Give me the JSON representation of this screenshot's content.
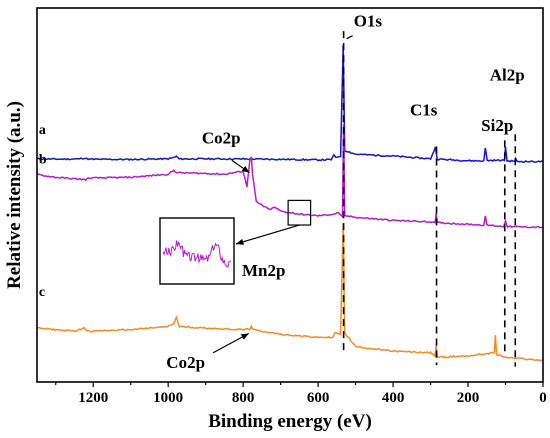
{
  "chart_data": {
    "type": "line",
    "xlabel": "Binding energy (eV)",
    "ylabel": "Relative intensity (a.u.)",
    "xlim": [
      1350,
      0
    ],
    "x_reversed": true,
    "x_ticks": [
      1200,
      1000,
      800,
      600,
      400,
      200,
      0
    ],
    "y_ticks_shown": false,
    "series": [
      {
        "name": "a",
        "color": "#1414c8",
        "baseline": 1.0,
        "points": [
          [
            1350,
            1.0
          ],
          [
            1300,
            0.98
          ],
          [
            1240,
            0.99
          ],
          [
            1225,
            1.05
          ],
          [
            1210,
            0.97
          ],
          [
            1100,
            0.96
          ],
          [
            1000,
            1.0
          ],
          [
            985,
            1.08
          ],
          [
            978,
            1.16
          ],
          [
            970,
            0.99
          ],
          [
            900,
            1.0
          ],
          [
            800,
            0.99
          ],
          [
            700,
            0.97
          ],
          [
            600,
            0.93
          ],
          [
            565,
            0.95
          ],
          [
            558,
            1.22
          ],
          [
            553,
            1.1
          ],
          [
            540,
            1.18
          ],
          [
            533,
            8.4
          ],
          [
            529,
            1.55
          ],
          [
            500,
            1.3
          ],
          [
            400,
            1.18
          ],
          [
            300,
            1.0
          ],
          [
            287,
            1.75
          ],
          [
            282,
            0.98
          ],
          [
            200,
            0.88
          ],
          [
            158,
            0.86
          ],
          [
            154,
            1.7
          ],
          [
            149,
            0.9
          ],
          [
            130,
            0.9
          ],
          [
            103,
            0.9
          ],
          [
            100,
            1.8
          ],
          [
            96,
            0.86
          ],
          [
            75,
            0.85
          ],
          [
            73,
            1.0
          ],
          [
            70,
            0.83
          ],
          [
            0,
            0.82
          ]
        ]
      },
      {
        "name": "b",
        "color": "#b41ec8",
        "baseline": 0.0,
        "points": [
          [
            1350,
            0.0
          ],
          [
            1330,
            -0.1
          ],
          [
            1300,
            -0.2
          ],
          [
            1250,
            -0.3
          ],
          [
            1220,
            -0.35
          ],
          [
            1210,
            -0.25
          ],
          [
            1100,
            -0.2
          ],
          [
            1000,
            0.0
          ],
          [
            985,
            0.25
          ],
          [
            975,
            0.1
          ],
          [
            900,
            0.05
          ],
          [
            850,
            0.0
          ],
          [
            800,
            0.2
          ],
          [
            790,
            -0.8
          ],
          [
            782,
            0.95
          ],
          [
            778,
            1.1
          ],
          [
            775,
            0.0
          ],
          [
            765,
            -1.8
          ],
          [
            730,
            -2.3
          ],
          [
            715,
            -2.15
          ],
          [
            700,
            -2.4
          ],
          [
            650,
            -2.6
          ],
          [
            600,
            -2.7
          ],
          [
            560,
            -2.6
          ],
          [
            545,
            -2.5
          ],
          [
            535,
            -2.8
          ],
          [
            532,
            3.2
          ],
          [
            529,
            -2.7
          ],
          [
            500,
            -2.8
          ],
          [
            400,
            -3.0
          ],
          [
            300,
            -3.1
          ],
          [
            288,
            -3.1
          ],
          [
            285,
            -2.55
          ],
          [
            282,
            -3.15
          ],
          [
            200,
            -3.25
          ],
          [
            158,
            -3.3
          ],
          [
            154,
            -2.75
          ],
          [
            150,
            -3.3
          ],
          [
            105,
            -3.4
          ],
          [
            100,
            -3.0
          ],
          [
            95,
            -3.4
          ],
          [
            0,
            -3.45
          ]
        ]
      },
      {
        "name": "c",
        "color": "#f08c28",
        "baseline": -10.0,
        "points": [
          [
            1350,
            -10.0
          ],
          [
            1250,
            -10.2
          ],
          [
            1225,
            -10.0
          ],
          [
            1210,
            -10.2
          ],
          [
            1100,
            -10.1
          ],
          [
            1000,
            -9.9
          ],
          [
            985,
            -9.7
          ],
          [
            978,
            -9.3
          ],
          [
            970,
            -9.9
          ],
          [
            900,
            -10.0
          ],
          [
            800,
            -10.1
          ],
          [
            782,
            -10.05
          ],
          [
            778,
            -9.85
          ],
          [
            775,
            -10.1
          ],
          [
            700,
            -10.4
          ],
          [
            600,
            -10.6
          ],
          [
            560,
            -10.6
          ],
          [
            555,
            -10.3
          ],
          [
            540,
            -10.4
          ],
          [
            533,
            -3.2
          ],
          [
            529,
            -10.3
          ],
          [
            500,
            -11.2
          ],
          [
            400,
            -11.5
          ],
          [
            300,
            -11.6
          ],
          [
            288,
            -11.8
          ],
          [
            285,
            -11.05
          ],
          [
            282,
            -11.9
          ],
          [
            200,
            -11.8
          ],
          [
            130,
            -11.6
          ],
          [
            127,
            -10.5
          ],
          [
            124,
            -11.7
          ],
          [
            100,
            -11.9
          ],
          [
            0,
            -12.1
          ]
        ]
      }
    ],
    "reference_lines": [
      {
        "x": 532,
        "label": "O1s"
      },
      {
        "x": 284,
        "label": "C1s"
      },
      {
        "x": 102,
        "label": "Si2p"
      },
      {
        "x": 74,
        "label": "Al2p"
      }
    ],
    "annotations": [
      {
        "text": "Co2p",
        "series": "b"
      },
      {
        "text": "Mn2p",
        "series": "b",
        "inset": true
      },
      {
        "text": "Co2p",
        "series": "c"
      }
    ],
    "series_labels": [
      "a",
      "b",
      "c"
    ]
  }
}
